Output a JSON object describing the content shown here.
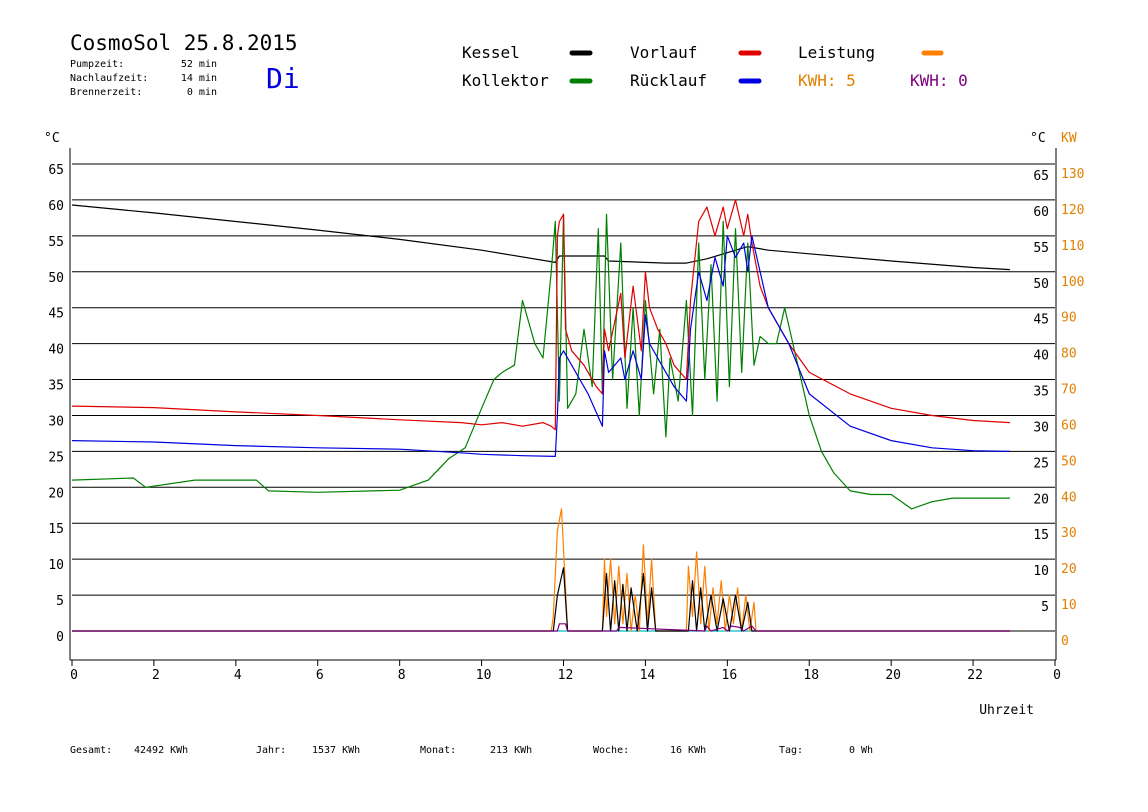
{
  "header": {
    "title": "CosmoSol 25.8.2015",
    "day": "Di",
    "runtimes": [
      {
        "label": "Pumpzeit:",
        "value": "52 min"
      },
      {
        "label": "Nachlaufzeit:",
        "value": "14 min"
      },
      {
        "label": "Brennerzeit:",
        "value": "0 min"
      }
    ]
  },
  "legend": {
    "items": [
      {
        "label": "Kessel",
        "color": "#000000"
      },
      {
        "label": "Kollektor",
        "color": "#008000"
      },
      {
        "label": "Vorlauf",
        "color": "#e00000"
      },
      {
        "label": "Rücklauf",
        "color": "#0000e0"
      },
      {
        "label": "Leistung",
        "color": "#ff8000"
      }
    ],
    "kwh_orange": "KWH: 5",
    "kwh_purple": "KWH: 0",
    "kwh_orange_color": "#e08000",
    "kwh_purple_color": "#800080"
  },
  "footer": {
    "items": [
      {
        "label": "Gesamt:",
        "value": "42492 KWh"
      },
      {
        "label": "Jahr:",
        "value": "1537 KWh"
      },
      {
        "label": "Monat:",
        "value": "213 KWh"
      },
      {
        "label": "Woche:",
        "value": "16 KWh"
      },
      {
        "label": "Tag:",
        "value": "0 Wh"
      }
    ]
  },
  "chart_data": {
    "type": "line",
    "xlabel": "Uhrzeit",
    "ylabel_left": "°C",
    "ylabel_right": "°C",
    "ylabel_right2": "KW",
    "xlim": [
      0,
      24
    ],
    "ylim": [
      0,
      65
    ],
    "y2lim": [
      0,
      130
    ],
    "x_ticks": [
      "0",
      "2",
      "4",
      "6",
      "8",
      "10",
      "12",
      "14",
      "16",
      "18",
      "20",
      "22",
      "0"
    ],
    "y_ticks": [
      0,
      5,
      10,
      15,
      20,
      25,
      30,
      35,
      40,
      45,
      50,
      55,
      60,
      65
    ],
    "y2_ticks": [
      0,
      10,
      20,
      30,
      40,
      50,
      60,
      70,
      80,
      90,
      100,
      110,
      120,
      130
    ],
    "grid": true,
    "series": [
      {
        "name": "Kessel",
        "color": "#000000",
        "x": [
          0,
          2,
          4,
          6,
          8,
          10,
          11.8,
          11.9,
          13,
          13.1,
          14.5,
          15,
          15.5,
          16.2,
          16.5,
          17,
          18,
          20,
          22,
          22.9
        ],
        "y": [
          59.3,
          58.2,
          57,
          55.8,
          54.5,
          53,
          51.3,
          52.2,
          52.2,
          51.5,
          51.2,
          51.2,
          51.8,
          53,
          53.5,
          53,
          52.5,
          51.5,
          50.6,
          50.3
        ]
      },
      {
        "name": "Kollektor",
        "color": "#008000",
        "x": [
          0,
          1.5,
          1.8,
          3,
          4.5,
          4.8,
          6,
          8,
          8.7,
          9.2,
          9.6,
          10,
          10.3,
          10.5,
          10.8,
          11,
          11.3,
          11.5,
          11.7,
          11.8,
          11.9,
          12,
          12.1,
          12.3,
          12.5,
          12.7,
          12.85,
          12.95,
          13.05,
          13.2,
          13.4,
          13.55,
          13.7,
          13.85,
          14,
          14.2,
          14.35,
          14.5,
          14.6,
          14.8,
          15,
          15.15,
          15.3,
          15.45,
          15.6,
          15.75,
          15.9,
          16.05,
          16.2,
          16.35,
          16.5,
          16.65,
          16.8,
          17,
          17.2,
          17.4,
          17.6,
          17.8,
          18,
          18.3,
          18.6,
          19,
          19.5,
          20,
          20.5,
          21,
          21.5,
          22,
          22.9
        ],
        "y": [
          21,
          21.3,
          20,
          21,
          21,
          19.5,
          19.3,
          19.6,
          21,
          24,
          25.5,
          31,
          35,
          36,
          37,
          46,
          40,
          38,
          50,
          57,
          32,
          58,
          31,
          33,
          42,
          34,
          56,
          33,
          58,
          35,
          54,
          31,
          45,
          30,
          46,
          33,
          42,
          27,
          38,
          32,
          46,
          30,
          54,
          35,
          51,
          32,
          57,
          34,
          56,
          36,
          54,
          37,
          41,
          40,
          40,
          45,
          40,
          35,
          30,
          25,
          22,
          19.5,
          19,
          19,
          17,
          18,
          18.5,
          18.5,
          18.5
        ]
      },
      {
        "name": "Vorlauf",
        "color": "#e00000",
        "x": [
          0,
          2,
          4,
          6,
          8,
          9.5,
          10,
          10.5,
          11,
          11.5,
          11.7,
          11.8,
          11.85,
          11.9,
          12,
          12.05,
          12.2,
          12.5,
          12.8,
          12.95,
          13,
          13.1,
          13.4,
          13.5,
          13.7,
          13.9,
          14,
          14.1,
          14.3,
          14.5,
          14.7,
          15,
          15.1,
          15.3,
          15.5,
          15.7,
          15.9,
          16,
          16.2,
          16.4,
          16.5,
          16.6,
          16.8,
          17,
          17.5,
          18,
          19,
          20,
          21,
          22,
          22.9
        ],
        "y": [
          31.3,
          31.1,
          30.5,
          30,
          29.4,
          29,
          28.7,
          29,
          28.5,
          29,
          28.5,
          28,
          55,
          57,
          58,
          42,
          39,
          37,
          34,
          33,
          42,
          39,
          47,
          38,
          48,
          39,
          50,
          45,
          42,
          40,
          37,
          35,
          46,
          57,
          59,
          55,
          59,
          56,
          60,
          55,
          58,
          54,
          48,
          45,
          40,
          36,
          33,
          31,
          30,
          29.3,
          29
        ]
      },
      {
        "name": "Rücklauf",
        "color": "#0000e0",
        "x": [
          0,
          2,
          4,
          6,
          8,
          9.5,
          10,
          11,
          11.8,
          11.85,
          11.9,
          12,
          12.3,
          12.6,
          12.95,
          13,
          13.1,
          13.4,
          13.5,
          13.7,
          13.9,
          14,
          14.1,
          14.3,
          14.5,
          14.7,
          15,
          15.1,
          15.3,
          15.5,
          15.7,
          15.9,
          16,
          16.2,
          16.4,
          16.5,
          16.6,
          16.8,
          17,
          17.5,
          18,
          19,
          20,
          21,
          22,
          22.9
        ],
        "y": [
          26.5,
          26.3,
          25.8,
          25.5,
          25.3,
          24.8,
          24.6,
          24.4,
          24.3,
          30,
          38,
          39,
          36,
          33,
          28.5,
          39,
          36,
          38,
          35,
          39,
          35,
          44,
          40,
          38,
          36,
          34,
          32,
          42,
          50,
          46,
          52,
          48,
          55,
          52,
          54,
          50,
          55,
          50,
          45,
          40,
          33,
          28.5,
          26.5,
          25.5,
          25.1,
          25
        ]
      },
      {
        "name": "Leistung",
        "color": "#ff8000",
        "x": [
          0,
          11.7,
          11.75,
          11.85,
          11.95,
          12.05,
          12.1,
          12.95,
          13.0,
          13.05,
          13.15,
          13.25,
          13.35,
          13.45,
          13.55,
          13.65,
          13.75,
          13.85,
          13.95,
          14.05,
          14.15,
          14.25,
          15.0,
          15.05,
          15.15,
          15.25,
          15.35,
          15.45,
          15.55,
          15.65,
          15.75,
          15.85,
          15.95,
          16.05,
          16.15,
          16.25,
          16.35,
          16.45,
          16.55,
          16.65,
          16.7,
          22.9
        ],
        "y": [
          0,
          0,
          2,
          14,
          17,
          6,
          0,
          0,
          10,
          2,
          10,
          1,
          9,
          1,
          8,
          0,
          5,
          0,
          12,
          1,
          10,
          0,
          0,
          9,
          2,
          11,
          1,
          9,
          0,
          6,
          1,
          7,
          0,
          5,
          1,
          6,
          0,
          5,
          0,
          4,
          0,
          0
        ]
      },
      {
        "name": "Pumpe",
        "color": "#000000",
        "x": [
          0,
          11.75,
          11.85,
          12.0,
          12.1,
          12.95,
          13.05,
          13.15,
          13.25,
          13.35,
          13.45,
          13.55,
          13.65,
          13.8,
          13.95,
          14.05,
          14.15,
          14.25,
          15.05,
          15.15,
          15.25,
          15.35,
          15.45,
          15.6,
          15.75,
          15.9,
          16.05,
          16.2,
          16.35,
          16.5,
          16.6,
          16.7,
          22.9
        ],
        "y": [
          0,
          0,
          5,
          8.8,
          0,
          0,
          8,
          0,
          7,
          0,
          6.5,
          0,
          6,
          0,
          8,
          0,
          6,
          0,
          0,
          7,
          0,
          6,
          0,
          5,
          0,
          4.5,
          0,
          5,
          0,
          4,
          0,
          0,
          0
        ]
      },
      {
        "name": "Leistung2",
        "color": "#800080",
        "x": [
          0,
          11.85,
          11.9,
          12.05,
          12.1,
          13.3,
          13.35,
          15.45,
          15.5,
          15.6,
          15.9,
          16.0,
          16.1,
          16.3,
          16.4,
          16.6,
          16.7,
          22.9
        ],
        "y": [
          0,
          0,
          1,
          1,
          0,
          0,
          0.5,
          0,
          0.7,
          0,
          0.5,
          0,
          0.7,
          0.5,
          0,
          0.7,
          0,
          0
        ]
      }
    ],
    "baseline": {
      "color": "#00c0c0",
      "y": 0
    }
  }
}
